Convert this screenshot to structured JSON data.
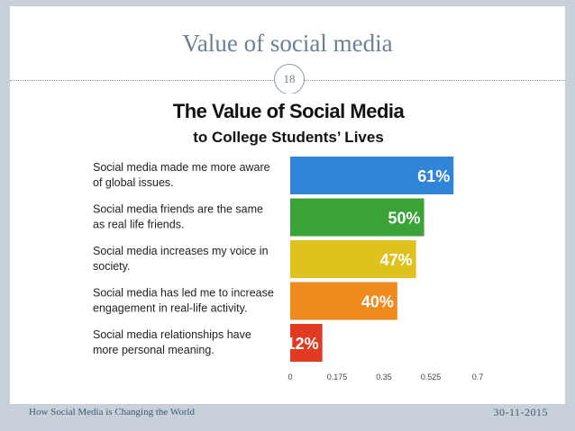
{
  "slide": {
    "title": "Value of social media",
    "page_number": "18",
    "footer_left": "How Social Media is Changing the World",
    "footer_right": "30-11-2015"
  },
  "chart_data": {
    "type": "bar",
    "orientation": "horizontal",
    "title": "The Value of Social Media",
    "subtitle": "to College Students’ Lives",
    "categories": [
      [
        "Social media made me more aware",
        "of global issues."
      ],
      [
        "Social media friends are the same",
        "as real life friends."
      ],
      [
        "Social media increases my voice in",
        "society."
      ],
      [
        "Social media has led me to increase",
        "engagement in real-life activity."
      ],
      [
        "Social media relationships have",
        "more personal meaning."
      ]
    ],
    "values": [
      0.61,
      0.5,
      0.47,
      0.4,
      0.12
    ],
    "data_labels": [
      "61%",
      "50%",
      "47%",
      "40%",
      "12%"
    ],
    "bar_colors": [
      "#2f86d9",
      "#3aa236",
      "#e0c21f",
      "#ee8a1e",
      "#e03b22"
    ],
    "xlim": [
      0,
      0.7
    ],
    "ticks": [
      0,
      0.175,
      0.35,
      0.525,
      0.7
    ],
    "tick_labels": [
      "0",
      "0.175",
      "0.35",
      "0.525",
      "0.7"
    ],
    "grid": false,
    "legend": "none"
  }
}
